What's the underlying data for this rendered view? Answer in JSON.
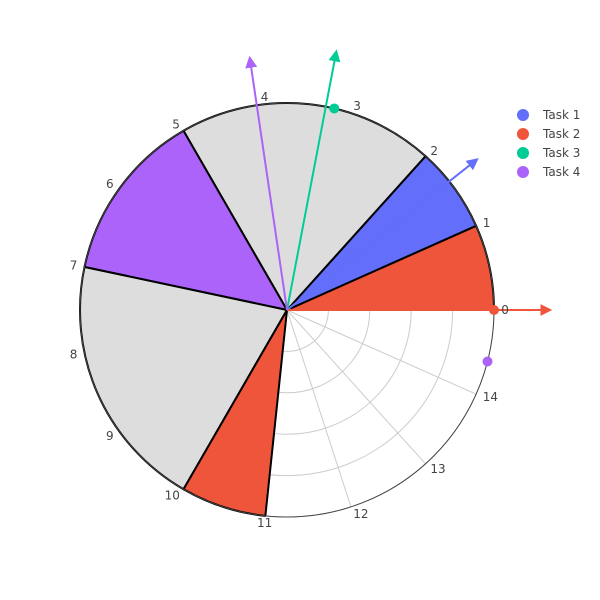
{
  "chart_data": {
    "type": "polar-gantt",
    "angular_ticks": [
      "0",
      "1",
      "2",
      "3",
      "4",
      "5",
      "6",
      "7",
      "8",
      "9",
      "10",
      "11",
      "12",
      "13",
      "14"
    ],
    "angular_period": 15,
    "angular_direction": "counterclockwise",
    "radial_range": [
      0,
      1
    ],
    "grid_rings": [
      0.2,
      0.4,
      0.6,
      0.8,
      1.0
    ],
    "wedges": [
      {
        "task": "Task 2",
        "start": 0,
        "end": 1,
        "color": "#EF553B"
      },
      {
        "task": "Task 1",
        "start": 1,
        "end": 2,
        "color": "#636EFA"
      },
      {
        "task": "",
        "start": 2,
        "end": 5,
        "color": "#DDDDDD"
      },
      {
        "task": "Task 4",
        "start": 5,
        "end": 7,
        "color": "#AB63FA"
      },
      {
        "task": "",
        "start": 7,
        "end": 10,
        "color": "#DDDDDD"
      },
      {
        "task": "Task 2",
        "start": 10,
        "end": 11,
        "color": "#EF553B"
      }
    ],
    "series": [
      {
        "name": "Task 1",
        "color": "#636EFA",
        "arrow_angle": 1.6,
        "arrow_r": 1.17
      },
      {
        "name": "Task 2",
        "color": "#EF553B",
        "arrow_angle": 0,
        "arrow_r": 1.27,
        "marker_angle": 0,
        "marker_r": 1.0
      },
      {
        "name": "Task 3",
        "color": "#00CC96",
        "arrow_angle": 3.3,
        "arrow_r": 1.27,
        "marker_angle": 3.2,
        "marker_r": 1.0
      },
      {
        "name": "Task 4",
        "color": "#AB63FA",
        "arrow_angle": 4.1,
        "arrow_r": 1.23,
        "marker_angle": 14.4,
        "marker_r": 1.0
      }
    ],
    "legend": {
      "position": "top-right"
    },
    "grid": true
  }
}
